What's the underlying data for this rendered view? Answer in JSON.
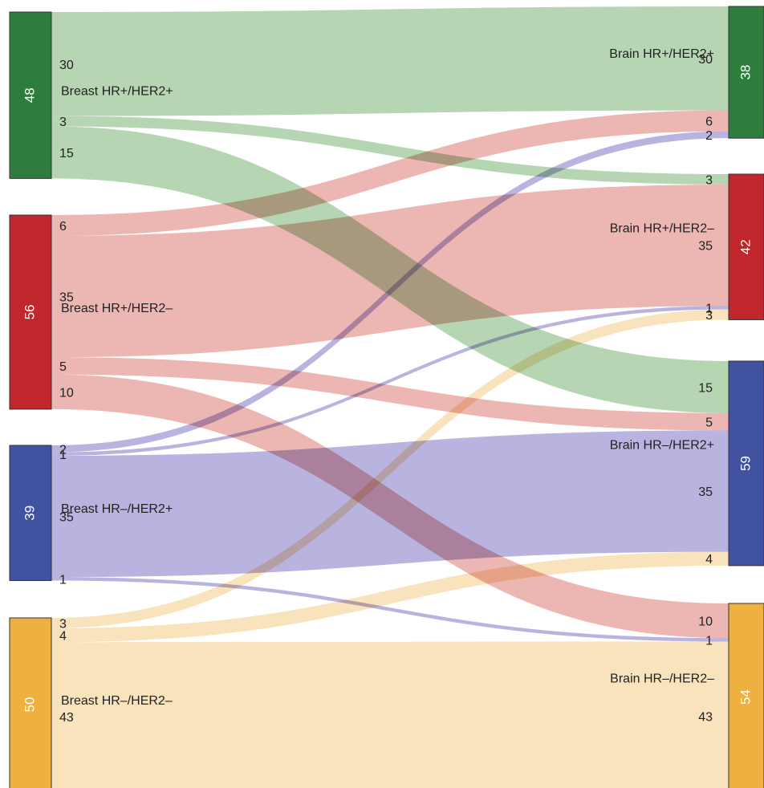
{
  "chart_data": {
    "type": "sankey",
    "left_nodes": [
      {
        "id": "L1",
        "name": "Breast HR+/HER2+",
        "total": "48",
        "color": "#2f7d3c",
        "flow_color": "#a9cfa6"
      },
      {
        "id": "L2",
        "name": "Breast HR+/HER2–",
        "total": "56",
        "color": "#c0272d",
        "flow_color": "#e9a9a6"
      },
      {
        "id": "L3",
        "name": "Breast HR–/HER2+",
        "total": "39",
        "color": "#4152a0",
        "flow_color": "#aba6d9"
      },
      {
        "id": "L4",
        "name": "Breast HR–/HER2–",
        "total": "50",
        "color": "#eeb03f",
        "flow_color": "#f7deb2"
      }
    ],
    "right_nodes": [
      {
        "id": "R1",
        "name": "Brain HR+/HER2+",
        "total": "38",
        "color": "#2f7d3c"
      },
      {
        "id": "R2",
        "name": "Brain HR+/HER2–",
        "total": "42",
        "color": "#c0272d"
      },
      {
        "id": "R3",
        "name": "Brain HR–/HER2+",
        "total": "59",
        "color": "#4152a0"
      },
      {
        "id": "R4",
        "name": "Brain HR–/HER2–",
        "total": "54",
        "color": "#eeb03f"
      }
    ],
    "flows": [
      {
        "source": "L1",
        "target": "R1",
        "value": 30,
        "label": "30"
      },
      {
        "source": "L1",
        "target": "R2",
        "value": 3,
        "label": "3"
      },
      {
        "source": "L1",
        "target": "R3",
        "value": 15,
        "label": "15"
      },
      {
        "source": "L2",
        "target": "R1",
        "value": 6,
        "label": "6"
      },
      {
        "source": "L2",
        "target": "R2",
        "value": 35,
        "label": "35"
      },
      {
        "source": "L2",
        "target": "R3",
        "value": 5,
        "label": "5"
      },
      {
        "source": "L2",
        "target": "R4",
        "value": 10,
        "label": "10"
      },
      {
        "source": "L3",
        "target": "R1",
        "value": 2,
        "label": "2"
      },
      {
        "source": "L3",
        "target": "R2",
        "value": 1,
        "label": "1"
      },
      {
        "source": "L3",
        "target": "R3",
        "value": 35,
        "label": "35"
      },
      {
        "source": "L3",
        "target": "R4",
        "value": 1,
        "label": "1"
      },
      {
        "source": "L4",
        "target": "R2",
        "value": 3,
        "label": "3"
      },
      {
        "source": "L4",
        "target": "R3",
        "value": 4,
        "label": "4"
      },
      {
        "source": "L4",
        "target": "R4",
        "value": 43,
        "label": "43"
      }
    ]
  }
}
